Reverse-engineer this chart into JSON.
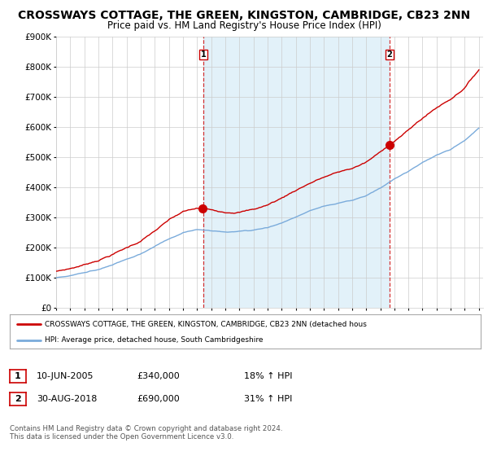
{
  "title": "CROSSWAYS COTTAGE, THE GREEN, KINGSTON, CAMBRIDGE, CB23 2NN",
  "subtitle": "Price paid vs. HM Land Registry's House Price Index (HPI)",
  "title_fontsize": 10,
  "subtitle_fontsize": 8.5,
  "ylim": [
    0,
    900000
  ],
  "yticks": [
    0,
    100000,
    200000,
    300000,
    400000,
    500000,
    600000,
    700000,
    800000,
    900000
  ],
  "ytick_labels": [
    "£0",
    "£100K",
    "£200K",
    "£300K",
    "£400K",
    "£500K",
    "£600K",
    "£700K",
    "£800K",
    "£900K"
  ],
  "hpi_color": "#7aabdb",
  "hpi_fill_color": "#d0e8f5",
  "price_color": "#cc0000",
  "marker1_year": 2005.44,
  "marker1_price": 340000,
  "marker2_year": 2018.66,
  "marker2_price": 690000,
  "legend_property": "CROSSWAYS COTTAGE, THE GREEN, KINGSTON, CAMBRIDGE, CB23 2NN (detached hous",
  "legend_hpi": "HPI: Average price, detached house, South Cambridgeshire",
  "table_row1_date": "10-JUN-2005",
  "table_row1_price": "£340,000",
  "table_row1_hpi": "18% ↑ HPI",
  "table_row2_date": "30-AUG-2018",
  "table_row2_price": "£690,000",
  "table_row2_hpi": "31% ↑ HPI",
  "footer": "Contains HM Land Registry data © Crown copyright and database right 2024.\nThis data is licensed under the Open Government Licence v3.0.",
  "background_color": "#ffffff",
  "shade_between_markers": true
}
